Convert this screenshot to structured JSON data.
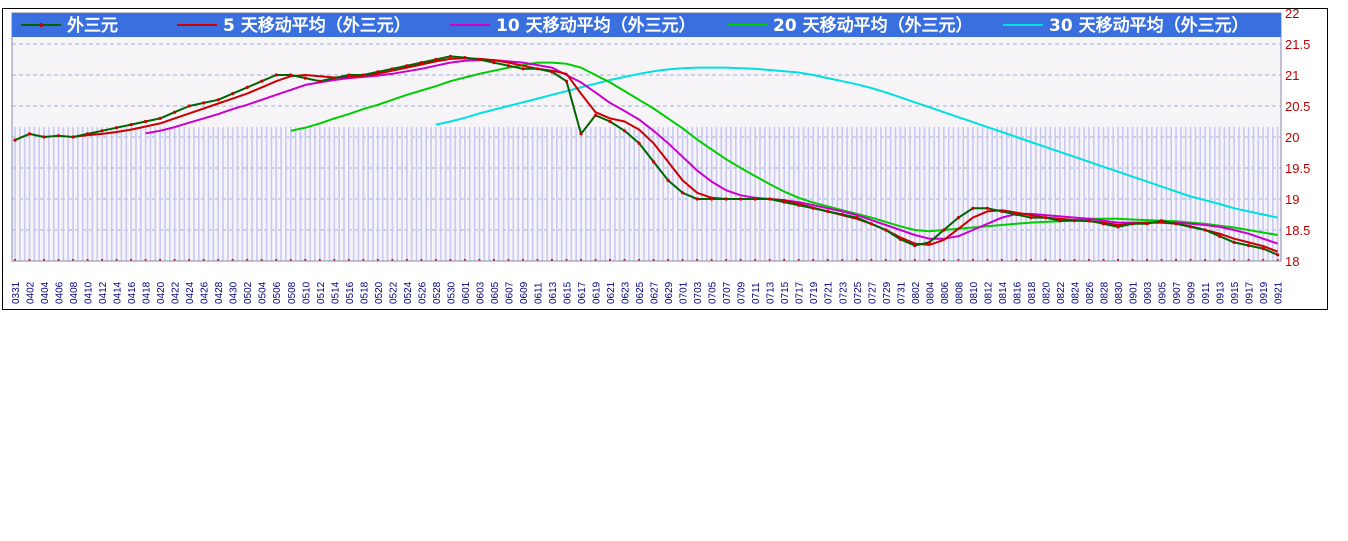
{
  "chart_data": {
    "type": "line",
    "title": "",
    "xlabel": "",
    "ylabel": "",
    "ylim": [
      18,
      22
    ],
    "yticks": [
      "18",
      "18.5",
      "19",
      "19.5",
      "20",
      "20.5",
      "21",
      "21.5",
      "22"
    ],
    "grid": true,
    "legend_position": "top",
    "colors": {
      "legend_bar": "#3a6fe0",
      "grid": "#9fb0d8",
      "volume_bars": "#c8c8f4",
      "ytick_text": "#c00000",
      "xtick_text": "#000080",
      "series_markers": "#cc0000"
    },
    "x_labels": [
      "0331",
      "0402",
      "0404",
      "0406",
      "0408",
      "0410",
      "0412",
      "0414",
      "0416",
      "0418",
      "0420",
      "0422",
      "0424",
      "0426",
      "0428",
      "0430",
      "0502",
      "0504",
      "0506",
      "0508",
      "0510",
      "0512",
      "0514",
      "0516",
      "0518",
      "0520",
      "0522",
      "0524",
      "0526",
      "0528",
      "0530",
      "0601",
      "0603",
      "0605",
      "0607",
      "0609",
      "0611",
      "0613",
      "0615",
      "0617",
      "0619",
      "0621",
      "0623",
      "0625",
      "0627",
      "0629",
      "0701",
      "0703",
      "0705",
      "0707",
      "0709",
      "0711",
      "0713",
      "0715",
      "0717",
      "0719",
      "0721",
      "0723",
      "0725",
      "0727",
      "0729",
      "0731",
      "0802",
      "0804",
      "0806",
      "0808",
      "0810",
      "0812",
      "0814",
      "0816",
      "0818",
      "0820",
      "0822",
      "0824",
      "0826",
      "0828",
      "0830",
      "0901",
      "0903",
      "0905",
      "0907",
      "0909",
      "0911",
      "0913",
      "0915",
      "0917",
      "0919",
      "0921"
    ],
    "series": [
      {
        "name": "外三元",
        "color": "#006400",
        "markers": true,
        "values": [
          19.95,
          20.05,
          20.0,
          20.02,
          20.0,
          20.05,
          20.1,
          20.15,
          20.2,
          20.25,
          20.3,
          20.4,
          20.5,
          20.55,
          20.6,
          20.7,
          20.8,
          20.9,
          21.0,
          21.0,
          20.95,
          20.9,
          20.95,
          21.0,
          21.0,
          21.05,
          21.1,
          21.15,
          21.2,
          21.25,
          21.3,
          21.28,
          21.25,
          21.2,
          21.15,
          21.1,
          21.1,
          21.05,
          20.9,
          20.05,
          20.35,
          20.25,
          20.1,
          19.9,
          19.6,
          19.3,
          19.1,
          19.0,
          19.0,
          19.0,
          19.0,
          19.0,
          19.0,
          18.95,
          18.9,
          18.85,
          18.8,
          18.75,
          18.7,
          18.6,
          18.5,
          18.35,
          18.25,
          18.3,
          18.5,
          18.7,
          18.85,
          18.85,
          18.8,
          18.75,
          18.7,
          18.7,
          18.65,
          18.65,
          18.65,
          18.6,
          18.55,
          18.6,
          18.6,
          18.65,
          18.6,
          18.55,
          18.5,
          18.4,
          18.3,
          18.25,
          18.2,
          18.1
        ]
      },
      {
        "name": "5 天移动平均（外三元）",
        "color": "#cc0000",
        "markers": false,
        "values": [
          null,
          null,
          null,
          null,
          20.0,
          20.03,
          20.05,
          20.08,
          20.12,
          20.17,
          20.22,
          20.3,
          20.38,
          20.46,
          20.54,
          20.62,
          20.7,
          20.8,
          20.9,
          20.98,
          21.0,
          20.98,
          20.96,
          20.97,
          20.99,
          21.02,
          21.07,
          21.12,
          21.17,
          21.22,
          21.26,
          21.27,
          21.26,
          21.24,
          21.2,
          21.15,
          21.1,
          21.07,
          21.02,
          20.7,
          20.4,
          20.3,
          20.25,
          20.12,
          19.9,
          19.6,
          19.3,
          19.1,
          19.02,
          19.0,
          19.0,
          19.0,
          19.0,
          18.98,
          18.92,
          18.86,
          18.8,
          18.74,
          18.68,
          18.6,
          18.5,
          18.38,
          18.28,
          18.26,
          18.34,
          18.52,
          18.7,
          18.8,
          18.82,
          18.78,
          18.74,
          18.7,
          18.68,
          18.66,
          18.64,
          18.62,
          18.58,
          18.6,
          18.62,
          18.62,
          18.6,
          18.56,
          18.5,
          18.44,
          18.36,
          18.3,
          18.24,
          18.15
        ]
      },
      {
        "name": "10 天移动平均（外三元）",
        "color": "#cc00cc",
        "markers": false,
        "values": [
          null,
          null,
          null,
          null,
          null,
          null,
          null,
          null,
          null,
          20.06,
          20.1,
          20.16,
          20.23,
          20.3,
          20.37,
          20.45,
          20.52,
          20.6,
          20.68,
          20.76,
          20.84,
          20.88,
          20.92,
          20.95,
          20.97,
          20.99,
          21.02,
          21.06,
          21.1,
          21.15,
          21.2,
          21.23,
          21.24,
          21.24,
          21.22,
          21.2,
          21.16,
          21.12,
          21.0,
          20.88,
          20.72,
          20.55,
          20.42,
          20.28,
          20.1,
          19.9,
          19.68,
          19.46,
          19.28,
          19.14,
          19.06,
          19.02,
          19.0,
          18.98,
          18.95,
          18.9,
          18.85,
          18.8,
          18.74,
          18.66,
          18.58,
          18.5,
          18.42,
          18.36,
          18.36,
          18.4,
          18.5,
          18.6,
          18.7,
          18.76,
          18.76,
          18.74,
          18.72,
          18.7,
          18.68,
          18.65,
          18.62,
          18.62,
          18.62,
          18.62,
          18.62,
          18.6,
          18.58,
          18.55,
          18.5,
          18.44,
          18.36,
          18.28
        ]
      },
      {
        "name": "20 天移动平均（外三元）",
        "color": "#00cc00",
        "markers": false,
        "values": [
          null,
          null,
          null,
          null,
          null,
          null,
          null,
          null,
          null,
          null,
          null,
          null,
          null,
          null,
          null,
          null,
          null,
          null,
          null,
          20.1,
          20.15,
          20.22,
          20.3,
          20.37,
          20.45,
          20.52,
          20.6,
          20.68,
          20.75,
          20.82,
          20.9,
          20.96,
          21.02,
          21.07,
          21.12,
          21.16,
          21.2,
          21.2,
          21.18,
          21.12,
          21.0,
          20.88,
          20.74,
          20.6,
          20.46,
          20.3,
          20.14,
          19.96,
          19.8,
          19.64,
          19.5,
          19.37,
          19.24,
          19.12,
          19.02,
          18.94,
          18.88,
          18.82,
          18.76,
          18.7,
          18.63,
          18.56,
          18.5,
          18.48,
          18.5,
          18.52,
          18.54,
          18.56,
          18.58,
          18.6,
          18.62,
          18.63,
          18.64,
          18.66,
          18.68,
          18.68,
          18.68,
          18.67,
          18.66,
          18.65,
          18.64,
          18.62,
          18.6,
          18.57,
          18.54,
          18.5,
          18.46,
          18.42
        ]
      },
      {
        "name": "30 天移动平均（外三元）",
        "color": "#00e0e0",
        "markers": false,
        "values": [
          null,
          null,
          null,
          null,
          null,
          null,
          null,
          null,
          null,
          null,
          null,
          null,
          null,
          null,
          null,
          null,
          null,
          null,
          null,
          null,
          null,
          null,
          null,
          null,
          null,
          null,
          null,
          null,
          null,
          20.2,
          20.25,
          20.31,
          20.38,
          20.44,
          20.5,
          20.56,
          20.62,
          20.68,
          20.74,
          20.8,
          20.86,
          20.92,
          20.97,
          21.02,
          21.06,
          21.09,
          21.11,
          21.12,
          21.12,
          21.12,
          21.11,
          21.1,
          21.08,
          21.06,
          21.04,
          21.0,
          20.95,
          20.9,
          20.85,
          20.79,
          20.72,
          20.64,
          20.56,
          20.48,
          20.4,
          20.32,
          20.24,
          20.16,
          20.08,
          20.0,
          19.92,
          19.84,
          19.76,
          19.68,
          19.6,
          19.52,
          19.44,
          19.36,
          19.28,
          19.2,
          19.12,
          19.04,
          18.98,
          18.92,
          18.85,
          18.8,
          18.75,
          18.7
        ]
      }
    ]
  }
}
